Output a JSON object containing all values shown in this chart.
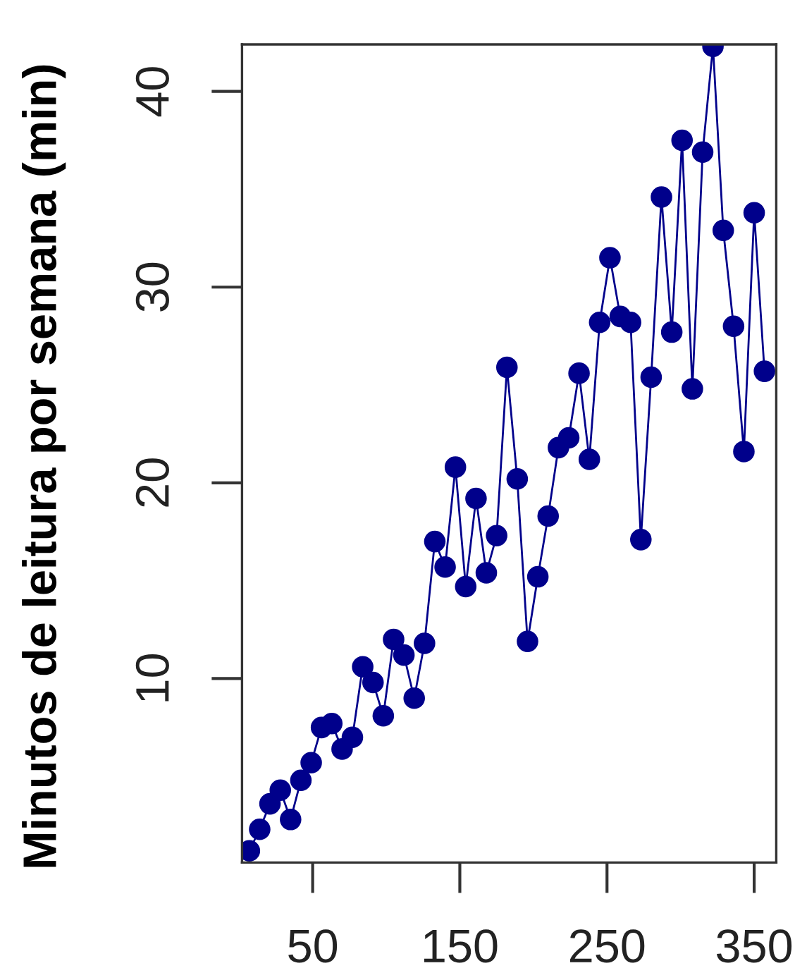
{
  "chart_data": {
    "type": "line",
    "ylabel": "Minutos de leitura por semana (min)",
    "x": [
      7,
      14,
      21,
      28,
      35,
      42,
      49,
      56,
      63,
      70,
      77,
      84,
      91,
      98,
      105,
      112,
      119,
      126,
      133,
      140,
      147,
      154,
      161,
      168,
      175,
      182,
      189,
      196,
      203,
      210,
      217,
      224,
      231,
      238,
      245,
      252,
      259,
      266,
      273,
      280,
      287,
      294,
      301,
      308,
      315,
      322,
      329,
      336,
      343,
      350,
      357
    ],
    "series": [
      {
        "color": "#00008b",
        "values": [
          1.2,
          2.3,
          3.6,
          4.3,
          2.8,
          4.8,
          5.7,
          7.5,
          7.7,
          6.4,
          7.0,
          10.6,
          9.8,
          8.1,
          12.0,
          11.2,
          9.0,
          11.8,
          17.0,
          15.7,
          20.8,
          14.7,
          19.2,
          15.4,
          17.3,
          25.9,
          20.2,
          11.9,
          15.2,
          18.3,
          21.8,
          22.3,
          25.6,
          21.2,
          28.2,
          31.5,
          28.5,
          28.2,
          17.1,
          25.4,
          34.6,
          27.7,
          37.5,
          24.8,
          36.9,
          42.3,
          32.9,
          28.0,
          21.6,
          33.8,
          25.7
        ]
      }
    ],
    "xlim": [
      2,
      365
    ],
    "ylim": [
      0.6,
      42.4
    ],
    "xticks": [
      50,
      150,
      250,
      350
    ],
    "yticks": [
      10,
      20,
      30,
      40
    ],
    "marker": "circle",
    "line_style": "solid"
  }
}
